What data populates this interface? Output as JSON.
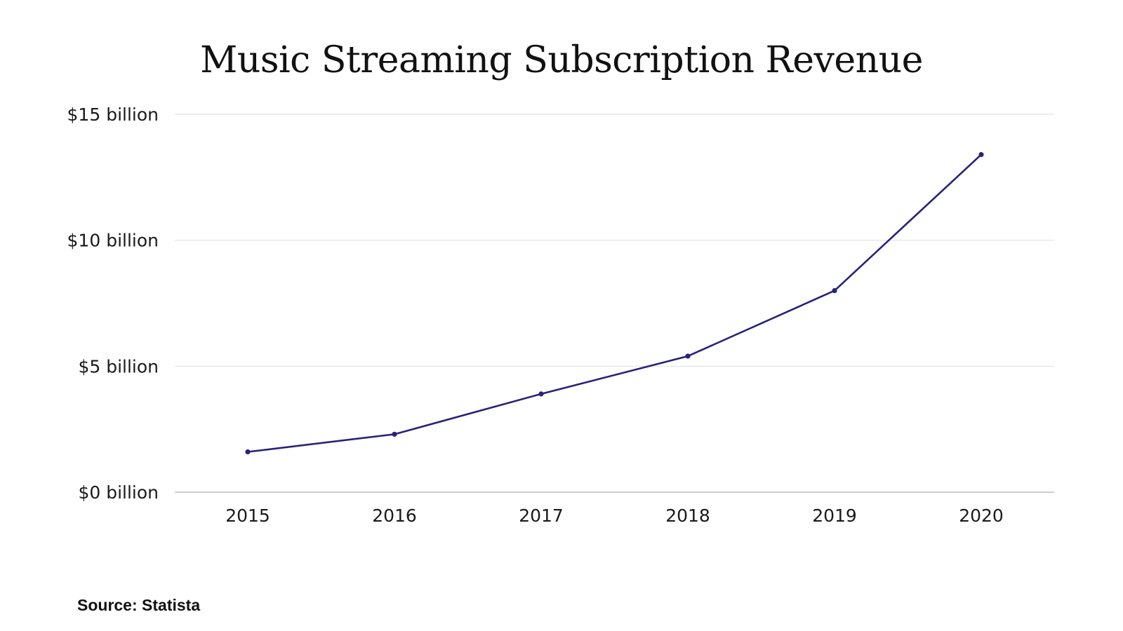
{
  "chart_data": {
    "type": "line",
    "title": "Music Streaming Subscription Revenue",
    "xlabel": "",
    "ylabel": "",
    "categories": [
      "2015",
      "2016",
      "2017",
      "2018",
      "2019",
      "2020"
    ],
    "series": [
      {
        "name": "Subscription Revenue",
        "values": [
          1.6,
          2.3,
          3.9,
          5.4,
          8.0,
          13.4
        ],
        "color": "#2a2278"
      }
    ],
    "ylim": [
      0,
      15
    ],
    "yticks": [
      0,
      5,
      10,
      15
    ],
    "ytick_labels": [
      "$0 billion",
      "$5 billion",
      "$10 billion",
      "$15 billion"
    ],
    "grid": true,
    "legend": "none",
    "units": "billion USD"
  },
  "footer": {
    "source": "Source: Statista"
  }
}
